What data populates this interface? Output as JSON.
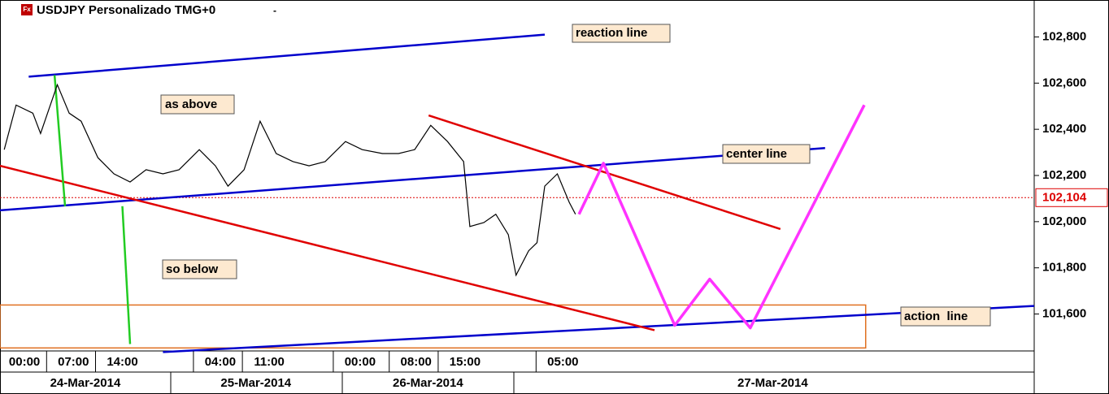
{
  "chart_data": {
    "type": "line",
    "title": "USDJPY Personalizado TMG+0",
    "menu_mark": "-",
    "icon_text": "Fx",
    "xlim": [
      -3.5,
      144.4
    ],
    "ylim": [
      101440,
      102960
    ],
    "xticks": [
      {
        "value": 0,
        "label": "00:00"
      },
      {
        "value": 7,
        "label": "07:00"
      },
      {
        "value": 14,
        "label": "14:00"
      },
      {
        "value": 28,
        "label": "04:00"
      },
      {
        "value": 35,
        "label": "11:00"
      },
      {
        "value": 48,
        "label": "00:00"
      },
      {
        "value": 56,
        "label": "08:00"
      },
      {
        "value": 63,
        "label": "15:00"
      },
      {
        "value": 77,
        "label": "05:00"
      }
    ],
    "date_labels": [
      {
        "value": 8.7,
        "label": "24-Mar-2014"
      },
      {
        "value": 33.1,
        "label": "25-Mar-2014"
      },
      {
        "value": 57.7,
        "label": "26-Mar-2014"
      },
      {
        "value": 107,
        "label": "27-Mar-2014"
      }
    ],
    "yticks": [
      {
        "value": 101600,
        "label": "101,600"
      },
      {
        "value": 101800,
        "label": "101,800"
      },
      {
        "value": 102000,
        "label": "102,000"
      },
      {
        "value": 102200,
        "label": "102,200"
      },
      {
        "value": 102400,
        "label": "102,400"
      },
      {
        "value": 102600,
        "label": "102,600"
      },
      {
        "value": 102800,
        "label": "102,800"
      }
    ],
    "current_price": {
      "value": 102104,
      "label": "102,104",
      "color": "#dd0000"
    },
    "series": [
      {
        "name": "USDJPY",
        "color": "#000000",
        "x": [
          -2.9,
          -1.2,
          1.2,
          2.3,
          4.7,
          6.4,
          8.1,
          10.5,
          12.8,
          15.1,
          17.4,
          19.8,
          22.1,
          25,
          27.3,
          29.1,
          31.4,
          33.7,
          36,
          38.4,
          40.7,
          43,
          45.9,
          48.3,
          51.2,
          53.5,
          55.8,
          58.1,
          60.5,
          62.8,
          63.7,
          65.7,
          67.4,
          69.2,
          70.3,
          72.1,
          73.3,
          74.4,
          76.2,
          77.9,
          78.8
        ],
        "values": [
          102312,
          102505,
          102470,
          102382,
          102593,
          102470,
          102435,
          102277,
          102207,
          102172,
          102225,
          102207,
          102225,
          102312,
          102242,
          102154,
          102225,
          102435,
          102295,
          102260,
          102242,
          102260,
          102347,
          102312,
          102295,
          102295,
          102312,
          102417,
          102347,
          102260,
          101979,
          101996,
          102032,
          101944,
          101768,
          101874,
          101909,
          102154,
          102207,
          102084,
          102032
        ]
      }
    ],
    "trendlines": [
      {
        "x": [
          0.6,
          74.4
        ],
        "y": [
          102628,
          102810
        ],
        "color": "#0000cc"
      },
      {
        "x": [
          -3.5,
          114.5
        ],
        "y": [
          102049,
          102319
        ],
        "color": "#0000cc"
      },
      {
        "x": [
          19.8,
          144.4
        ],
        "y": [
          101435,
          101635
        ],
        "color": "#0000cc"
      },
      {
        "x": [
          -3.5,
          90.1
        ],
        "y": [
          102242,
          101530
        ],
        "color": "#e00000"
      },
      {
        "x": [
          57.8,
          108.1
        ],
        "y": [
          102460,
          101968
        ],
        "color": "#e00000"
      },
      {
        "x": [
          4.3,
          5.8
        ],
        "y": [
          102635,
          102067
        ],
        "color": "#22cc22"
      },
      {
        "x": [
          14,
          15.1
        ],
        "y": [
          102067,
          101470
        ],
        "color": "#22cc22"
      }
    ],
    "forecast": {
      "x": [
        79.3,
        82.8,
        93,
        98,
        103.8,
        120.1
      ],
      "y": [
        102032,
        102253,
        101551,
        101751,
        101540,
        102505
      ],
      "color": "#ff33ff"
    },
    "zone": {
      "xlim": [
        -3.5,
        120.3
      ],
      "ylim": [
        101453,
        101639
      ],
      "color": "#e07020"
    },
    "annotations": [
      "reaction line",
      "as above",
      "center line",
      "so below",
      "action  line"
    ]
  }
}
